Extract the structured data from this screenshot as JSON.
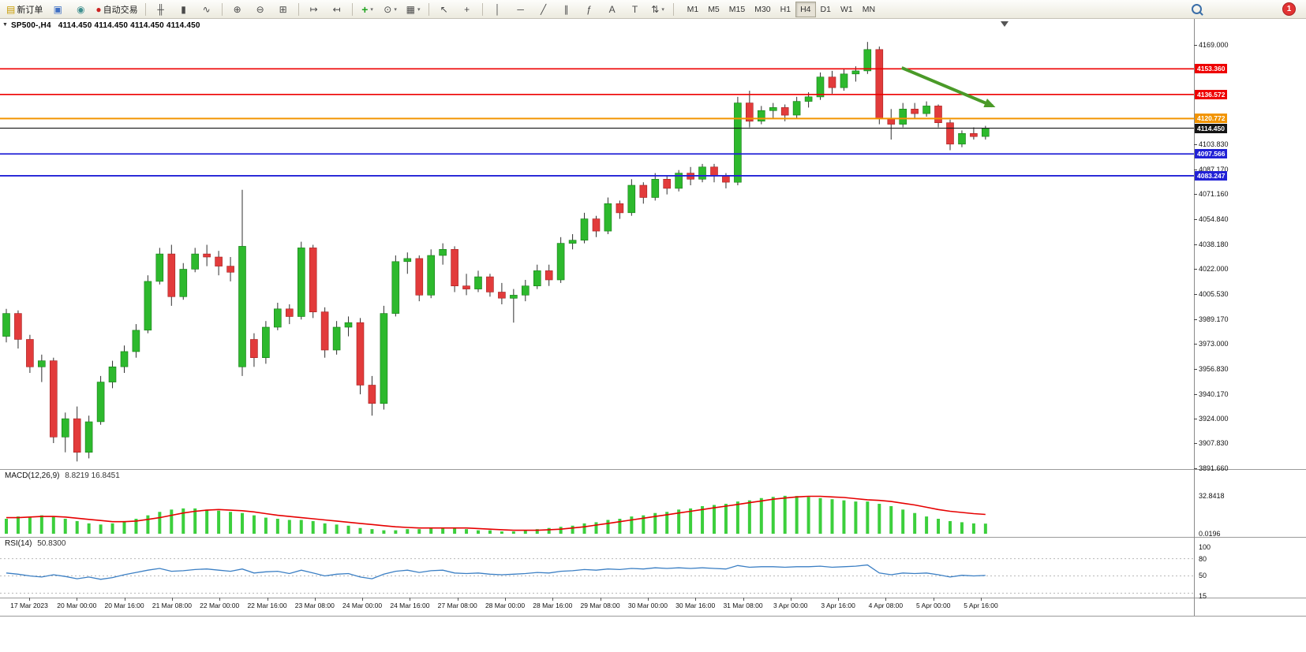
{
  "toolbar": {
    "new_order_label": "新订单",
    "auto_trading_label": "自动交易",
    "icons": {
      "new_order": "▤",
      "metaeditor": "▣",
      "community": "◉",
      "auto_trading": "●",
      "bars": "╫",
      "candles": "▮",
      "line": "∿",
      "zoom_in": "⊕",
      "zoom_out": "⊖",
      "tile_windows": "⊞",
      "auto_scroll": "↦",
      "chart_shift": "↤",
      "indicators": "+",
      "periods": "⊙",
      "templates": "▦",
      "cursor": "↖",
      "crosshair": "+",
      "vertical_line": "│",
      "horizontal_line": "─",
      "trendline": "╱",
      "channel": "∥",
      "fibonacci": "ƒ",
      "text": "A",
      "text_label": "T",
      "arrows": "⇅",
      "caret": "▾"
    },
    "timeframes": [
      "M1",
      "M5",
      "M15",
      "M30",
      "H1",
      "H4",
      "D1",
      "W1",
      "MN"
    ],
    "active_timeframe": "H4",
    "notification_count": "1"
  },
  "chart": {
    "collapse_marker": "▼",
    "symbol_label": "SP500-,H4",
    "ohlc_label": "4114.450 4114.450 4114.450 4114.450"
  },
  "macd_panel": {
    "name": "MACD(12,26,9)",
    "values": "8.8219 16.8451"
  },
  "rsi_panel": {
    "name": "RSI(14)",
    "values": "50.8300"
  },
  "chart_data": {
    "type": "candlestick",
    "symbol": "SP500-",
    "timeframe": "H4",
    "ylim": [
      3892,
      4184
    ],
    "bull_color": "#2db92d",
    "bear_color": "#e23b3b",
    "wick_color": "#303030",
    "candles": [
      [
        3978,
        3996,
        3974,
        3993
      ],
      [
        3993,
        3995,
        3970,
        3976
      ],
      [
        3976,
        3979,
        3954,
        3958
      ],
      [
        3958,
        3966,
        3948,
        3962
      ],
      [
        3962,
        3964,
        3908,
        3912
      ],
      [
        3912,
        3928,
        3902,
        3924
      ],
      [
        3924,
        3932,
        3896,
        3902
      ],
      [
        3902,
        3926,
        3898,
        3922
      ],
      [
        3922,
        3952,
        3920,
        3948
      ],
      [
        3948,
        3962,
        3944,
        3958
      ],
      [
        3958,
        3972,
        3954,
        3968
      ],
      [
        3968,
        3986,
        3964,
        3982
      ],
      [
        3982,
        4018,
        3980,
        4014
      ],
      [
        4014,
        4036,
        4012,
        4032
      ],
      [
        4032,
        4038,
        3998,
        4004
      ],
      [
        4004,
        4026,
        4002,
        4022
      ],
      [
        4022,
        4036,
        4020,
        4032
      ],
      [
        4032,
        4038,
        4024,
        4030
      ],
      [
        4030,
        4034,
        4018,
        4024
      ],
      [
        4024,
        4030,
        4014,
        4020
      ],
      [
        3958,
        4074,
        3952,
        4037
      ],
      [
        3976,
        3980,
        3958,
        3964
      ],
      [
        3964,
        3988,
        3960,
        3984
      ],
      [
        3984,
        4000,
        3982,
        3996
      ],
      [
        3996,
        3999,
        3986,
        3991
      ],
      [
        3991,
        4040,
        3989,
        4036
      ],
      [
        4036,
        4038,
        3990,
        3994
      ],
      [
        3994,
        3997,
        3964,
        3969
      ],
      [
        3969,
        3988,
        3966,
        3984
      ],
      [
        3984,
        3991,
        3978,
        3987
      ],
      [
        3987,
        3990,
        3940,
        3946
      ],
      [
        3946,
        3952,
        3926,
        3934
      ],
      [
        3934,
        3998,
        3930,
        3993
      ],
      [
        3993,
        4031,
        3991,
        4027
      ],
      [
        4027,
        4033,
        4019,
        4029
      ],
      [
        4029,
        4031,
        4001,
        4005
      ],
      [
        4005,
        4035,
        4003,
        4031
      ],
      [
        4031,
        4039,
        4025,
        4035
      ],
      [
        4035,
        4037,
        4007,
        4011
      ],
      [
        4011,
        4019,
        4005,
        4009
      ],
      [
        4009,
        4021,
        4007,
        4017
      ],
      [
        4017,
        4019,
        4004,
        4007
      ],
      [
        4007,
        4013,
        3999,
        4003
      ],
      [
        4003,
        4009,
        3987,
        4005
      ],
      [
        4005,
        4015,
        4001,
        4011
      ],
      [
        4011,
        4025,
        4009,
        4021
      ],
      [
        4021,
        4025,
        4011,
        4015
      ],
      [
        4015,
        4043,
        4013,
        4039
      ],
      [
        4039,
        4045,
        4035,
        4041
      ],
      [
        4041,
        4059,
        4039,
        4055
      ],
      [
        4055,
        4057,
        4043,
        4047
      ],
      [
        4047,
        4069,
        4045,
        4065
      ],
      [
        4065,
        4067,
        4055,
        4059
      ],
      [
        4059,
        4081,
        4057,
        4077
      ],
      [
        4077,
        4079,
        4065,
        4069
      ],
      [
        4069,
        4085,
        4067,
        4081
      ],
      [
        4081,
        4083,
        4071,
        4075
      ],
      [
        4075,
        4087,
        4073,
        4085
      ],
      [
        4085,
        4089,
        4077,
        4081
      ],
      [
        4081,
        4091,
        4079,
        4089
      ],
      [
        4089,
        4091,
        4079,
        4083
      ],
      [
        4083,
        4085,
        4075,
        4079
      ],
      [
        4079,
        4135,
        4077,
        4131
      ],
      [
        4131,
        4139,
        4115,
        4119
      ],
      [
        4119,
        4129,
        4117,
        4126
      ],
      [
        4126,
        4131,
        4121,
        4128
      ],
      [
        4128,
        4130,
        4119,
        4123
      ],
      [
        4123,
        4135,
        4121,
        4132
      ],
      [
        4132,
        4138,
        4128,
        4135
      ],
      [
        4135,
        4151,
        4133,
        4148
      ],
      [
        4148,
        4152,
        4137,
        4141
      ],
      [
        4141,
        4153,
        4139,
        4150
      ],
      [
        4150,
        4155,
        4145,
        4152
      ],
      [
        4152,
        4171,
        4150,
        4166
      ],
      [
        4166,
        4168,
        4117,
        4121
      ],
      [
        4121,
        4127,
        4107,
        4117
      ],
      [
        4117,
        4131,
        4115,
        4127
      ],
      [
        4127,
        4131,
        4121,
        4124
      ],
      [
        4124,
        4132,
        4122,
        4129
      ],
      [
        4129,
        4130,
        4115,
        4118
      ],
      [
        4118,
        4120,
        4100,
        4104
      ],
      [
        4104,
        4113,
        4102,
        4111
      ],
      [
        4111,
        4115,
        4107,
        4109
      ],
      [
        4109,
        4116,
        4107,
        4114.45
      ]
    ],
    "levels": [
      {
        "text": "4153.360",
        "color": "#ee0000",
        "width": 1.6
      },
      {
        "text": "4136.572",
        "color": "#ee0000",
        "width": 1.6
      },
      {
        "text": "4120.772",
        "color": "#f29400",
        "width": 2
      },
      {
        "text": "4114.450",
        "color": "#141414",
        "width": 1.1,
        "current": true
      },
      {
        "text": "4097.566",
        "color": "#2121d6",
        "width": 1.8
      },
      {
        "text": "4083.247",
        "color": "#2121d6",
        "width": 1.8
      }
    ],
    "price_axis": [
      "4169.000",
      "4103.830",
      "4087.170",
      "4071.160",
      "4054.840",
      "4038.180",
      "4022.000",
      "4005.530",
      "3989.170",
      "3973.000",
      "3956.830",
      "3940.170",
      "3924.000",
      "3907.830",
      "3891.660"
    ],
    "time_labels": [
      "17 Mar 2023",
      "20 Mar 00:00",
      "20 Mar 16:00",
      "21 Mar 08:00",
      "22 Mar 00:00",
      "22 Mar 16:00",
      "23 Mar 08:00",
      "24 Mar 00:00",
      "24 Mar 16:00",
      "27 Mar 08:00",
      "28 Mar 00:00",
      "28 Mar 16:00",
      "29 Mar 08:00",
      "30 Mar 00:00",
      "30 Mar 16:00",
      "31 Mar 08:00",
      "3 Apr 00:00",
      "3 Apr 16:00",
      "4 Apr 08:00",
      "5 Apr 00:00",
      "5 Apr 16:00"
    ],
    "arrow": {
      "from_index": 75.9,
      "from_price": 4154,
      "to_index": 83.6,
      "to_price": 4129,
      "color": "#4a9a28"
    },
    "macd": {
      "label": "MACD(12,26,9)",
      "ylim": [
        0,
        35
      ],
      "hist_color": "#3ccf3c",
      "signal_color": "#e60000",
      "axis": [
        "32.8418",
        "0.0196"
      ],
      "histogram": [
        13,
        15,
        14,
        16,
        15,
        13,
        11,
        9,
        8,
        9,
        11,
        13,
        16,
        19,
        21,
        22,
        22,
        21,
        20,
        19,
        18,
        16,
        14,
        13,
        12,
        12,
        11,
        9,
        8,
        7,
        5,
        4,
        3,
        3,
        4,
        4,
        5,
        5,
        5,
        4,
        3,
        3,
        2,
        2,
        3,
        4,
        5,
        6,
        7,
        9,
        10,
        12,
        13,
        15,
        16,
        18,
        19,
        21,
        22,
        24,
        25,
        26,
        28,
        29,
        31,
        32,
        33,
        32.8,
        32,
        31,
        30,
        29,
        28,
        28,
        26,
        24,
        21,
        18,
        15,
        13,
        11,
        10,
        9,
        8.8
      ],
      "signal": [
        14,
        14,
        14.5,
        15,
        15,
        14.5,
        13.5,
        12.5,
        11.5,
        10.5,
        10.5,
        11,
        12.5,
        14,
        16,
        18,
        19.5,
        20.5,
        21,
        20.5,
        20,
        19,
        17.5,
        16,
        15,
        14,
        13,
        12,
        11,
        10,
        9,
        8,
        7,
        6,
        5.5,
        5,
        5,
        5,
        5,
        5,
        4.5,
        4,
        3.5,
        3,
        3,
        3,
        3.5,
        4,
        5,
        6,
        7.5,
        9,
        10.5,
        12,
        13.5,
        15,
        16.5,
        18,
        19.5,
        21,
        22.5,
        24,
        25.5,
        27,
        28.5,
        30,
        31,
        32,
        32.5,
        32.5,
        32,
        31.5,
        30.5,
        29.5,
        29,
        28,
        26.5,
        25,
        23,
        21,
        19.5,
        18.5,
        17.5,
        16.8
      ]
    },
    "rsi": {
      "label": "RSI(14)",
      "ylim": [
        15,
        100
      ],
      "line_color": "#3b7fc4",
      "levels": [
        80,
        50,
        20
      ],
      "axis": [
        "100",
        "80",
        "50",
        "15"
      ],
      "values": [
        55,
        53,
        50,
        48,
        52,
        49,
        45,
        48,
        44,
        47,
        52,
        56,
        60,
        63,
        58,
        59,
        61,
        62,
        60,
        58,
        62,
        55,
        57,
        58,
        54,
        60,
        55,
        50,
        53,
        54,
        48,
        45,
        53,
        58,
        60,
        56,
        59,
        60,
        55,
        54,
        55,
        53,
        52,
        53,
        54,
        56,
        55,
        58,
        59,
        61,
        60,
        62,
        61,
        63,
        62,
        64,
        63,
        64,
        63,
        64,
        63,
        62,
        68,
        65,
        66,
        66,
        65,
        66,
        66,
        67,
        65,
        66,
        67,
        69,
        55,
        52,
        55,
        54,
        55,
        52,
        48,
        51,
        50,
        50.8
      ]
    }
  }
}
